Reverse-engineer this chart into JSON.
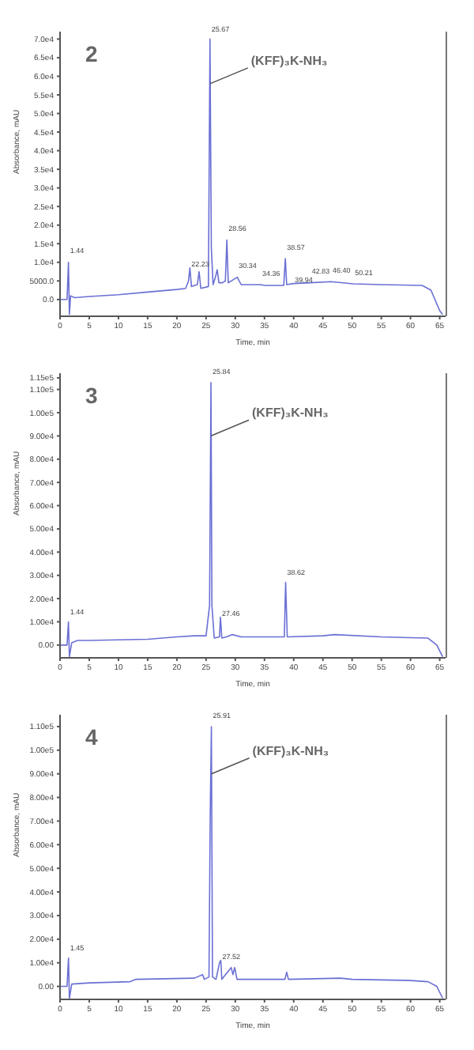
{
  "chart_data": [
    {
      "type": "line",
      "title": "2",
      "xlabel": "Time, min",
      "ylabel": "Absorbance, mAU",
      "xlim": [
        0,
        66
      ],
      "xticks": [
        0,
        5,
        10,
        15,
        20,
        25,
        30,
        35,
        40,
        45,
        50,
        55,
        60,
        65
      ],
      "ylim": [
        -4500,
        72000
      ],
      "yticks": [
        {
          "value": 0,
          "label": "0.0"
        },
        {
          "value": 5000,
          "label": "5000.0"
        },
        {
          "value": 10000,
          "label": "1.0e4"
        },
        {
          "value": 15000,
          "label": "1.5e4"
        },
        {
          "value": 20000,
          "label": "2.0e4"
        },
        {
          "value": 25000,
          "label": "2.5e4"
        },
        {
          "value": 30000,
          "label": "3.0e4"
        },
        {
          "value": 35000,
          "label": "3.5e4"
        },
        {
          "value": 40000,
          "label": "4.0e4"
        },
        {
          "value": 45000,
          "label": "4.5e4"
        },
        {
          "value": 50000,
          "label": "5.0e4"
        },
        {
          "value": 55000,
          "label": "5.5e4"
        },
        {
          "value": 60000,
          "label": "6.0e4"
        },
        {
          "value": 65000,
          "label": "6.5e4"
        },
        {
          "value": 70000,
          "label": "7.0e4"
        }
      ],
      "marker": "none",
      "series": [
        {
          "color": "#6a6fd4",
          "x": [
            0,
            1.2,
            1.44,
            1.6,
            1.8,
            2.5,
            5,
            10,
            15,
            20,
            21.5,
            22,
            22.23,
            22.5,
            23.5,
            23.8,
            24.1,
            25.4,
            25.67,
            25.9,
            26.2,
            26.6,
            26.9,
            27.2,
            27.8,
            28.3,
            28.56,
            28.8,
            30.34,
            31,
            34.36,
            35,
            38.3,
            38.57,
            38.8,
            39.94,
            42.83,
            46.4,
            50.21,
            55,
            62,
            63.5,
            65,
            65.5
          ],
          "values": [
            0,
            0,
            10000,
            -4000,
            1000,
            500,
            800,
            1300,
            2000,
            2700,
            3000,
            5000,
            8500,
            3500,
            4000,
            7500,
            3000,
            3500,
            70000,
            14000,
            4000,
            6000,
            8000,
            4500,
            4500,
            5000,
            16000,
            4500,
            6000,
            4000,
            4000,
            3800,
            3800,
            11000,
            4000,
            4300,
            4500,
            4800,
            4200,
            4000,
            3800,
            2500,
            -3000,
            -4000
          ]
        }
      ],
      "annotations": [
        {
          "text": "(KFF)₃K-NH₃",
          "x": 25.67,
          "y": 58000
        },
        {
          "text": "1.44",
          "x": 1.44,
          "y": 12000
        },
        {
          "text": "22.23",
          "x": 22.23,
          "y": 8500
        },
        {
          "text": "25.67",
          "x": 25.67,
          "y": 71500
        },
        {
          "text": "28.56",
          "x": 28.56,
          "y": 18000
        },
        {
          "text": "30.34",
          "x": 30.34,
          "y": 8000
        },
        {
          "text": "34.36",
          "x": 34.36,
          "y": 6000
        },
        {
          "text": "38.57",
          "x": 38.57,
          "y": 13000
        },
        {
          "text": "39.94",
          "x": 39.94,
          "y": 4300
        },
        {
          "text": "42.83",
          "x": 42.83,
          "y": 6500
        },
        {
          "text": "46.40",
          "x": 46.4,
          "y": 6800
        },
        {
          "text": "50.21",
          "x": 50.21,
          "y": 6200
        }
      ]
    },
    {
      "type": "line",
      "title": "3",
      "xlabel": "Time, min",
      "ylabel": "Absorbance, mAU",
      "xlim": [
        0,
        66
      ],
      "xticks": [
        0,
        5,
        10,
        15,
        20,
        25,
        30,
        35,
        40,
        45,
        50,
        55,
        60,
        65
      ],
      "ylim": [
        -5500,
        117000
      ],
      "yticks": [
        {
          "value": 0,
          "label": "0.00"
        },
        {
          "value": 10000,
          "label": "1.00e4"
        },
        {
          "value": 20000,
          "label": "2.00e4"
        },
        {
          "value": 30000,
          "label": "3.00e4"
        },
        {
          "value": 40000,
          "label": "4.00e4"
        },
        {
          "value": 50000,
          "label": "5.00e4"
        },
        {
          "value": 60000,
          "label": "6.00e4"
        },
        {
          "value": 70000,
          "label": "7.00e4"
        },
        {
          "value": 80000,
          "label": "8.00e4"
        },
        {
          "value": 90000,
          "label": "9.00e4"
        },
        {
          "value": 100000,
          "label": "1.00e5"
        },
        {
          "value": 110000,
          "label": "1.10e5"
        },
        {
          "value": 115000,
          "label": "1.15e5"
        }
      ],
      "marker": "none",
      "series": [
        {
          "color": "#6a6fd4",
          "x": [
            0,
            1.2,
            1.44,
            1.6,
            2,
            3,
            5,
            15,
            20,
            23,
            25,
            25.6,
            25.84,
            26,
            26.4,
            27.3,
            27.46,
            27.7,
            28.5,
            29.5,
            31,
            38.4,
            38.62,
            38.9,
            45,
            47,
            55,
            63,
            64.5,
            65.5
          ],
          "values": [
            0,
            0,
            10000,
            -5000,
            1000,
            2000,
            2000,
            2500,
            3500,
            4000,
            4000,
            17000,
            113000,
            17000,
            3000,
            3500,
            12000,
            3000,
            3500,
            4500,
            3500,
            3500,
            27000,
            3500,
            4000,
            4500,
            3500,
            3000,
            0,
            -5000
          ]
        }
      ],
      "annotations": [
        {
          "text": "(KFF)₃K-NH₃",
          "x": 25.84,
          "y": 90000
        },
        {
          "text": "1.44",
          "x": 1.44,
          "y": 12500
        },
        {
          "text": "25.84",
          "x": 25.84,
          "y": 116000
        },
        {
          "text": "27.46",
          "x": 27.46,
          "y": 12000
        },
        {
          "text": "38.62",
          "x": 38.62,
          "y": 29500
        }
      ]
    },
    {
      "type": "line",
      "title": "4",
      "xlabel": "Time, min",
      "ylabel": "Absorbance, mAU",
      "xlim": [
        0,
        66
      ],
      "xticks": [
        0,
        5,
        10,
        15,
        20,
        25,
        30,
        35,
        40,
        45,
        50,
        55,
        60,
        65
      ],
      "ylim": [
        -5500,
        115000
      ],
      "yticks": [
        {
          "value": 0,
          "label": "0.00"
        },
        {
          "value": 10000,
          "label": "1.00e4"
        },
        {
          "value": 20000,
          "label": "2.00e4"
        },
        {
          "value": 30000,
          "label": "3.00e4"
        },
        {
          "value": 40000,
          "label": "4.00e4"
        },
        {
          "value": 50000,
          "label": "5.00e4"
        },
        {
          "value": 60000,
          "label": "6.00e4"
        },
        {
          "value": 70000,
          "label": "7.00e4"
        },
        {
          "value": 80000,
          "label": "8.00e4"
        },
        {
          "value": 90000,
          "label": "9.00e4"
        },
        {
          "value": 100000,
          "label": "1.00e5"
        },
        {
          "value": 110000,
          "label": "1.10e5"
        }
      ],
      "marker": "none",
      "series": [
        {
          "color": "#6a6fd4",
          "x": [
            0,
            1.2,
            1.45,
            1.6,
            2,
            5,
            12,
            13,
            23,
            24.4,
            24.7,
            25.5,
            25.7,
            25.91,
            26.1,
            26.7,
            27.3,
            27.52,
            27.7,
            29.3,
            29.6,
            29.9,
            30.3,
            33,
            35,
            38.5,
            38.8,
            39.1,
            48,
            50,
            60,
            63,
            64.5,
            65.5
          ],
          "values": [
            0,
            0,
            12000,
            -5000,
            1000,
            1500,
            2000,
            3000,
            3500,
            5000,
            3000,
            4000,
            70000,
            110000,
            4000,
            3000,
            10000,
            11000,
            3000,
            8000,
            5000,
            8000,
            3000,
            3000,
            3000,
            3000,
            6000,
            3000,
            3500,
            3000,
            2500,
            2000,
            0,
            -5000
          ]
        }
      ],
      "annotations": [
        {
          "text": "(KFF)₃K-NH₃",
          "x": 25.91,
          "y": 90000
        },
        {
          "text": "1.45",
          "x": 1.45,
          "y": 14500
        },
        {
          "text": "25.91",
          "x": 25.91,
          "y": 113000
        },
        {
          "text": "27.52",
          "x": 27.52,
          "y": 11000
        }
      ]
    }
  ]
}
